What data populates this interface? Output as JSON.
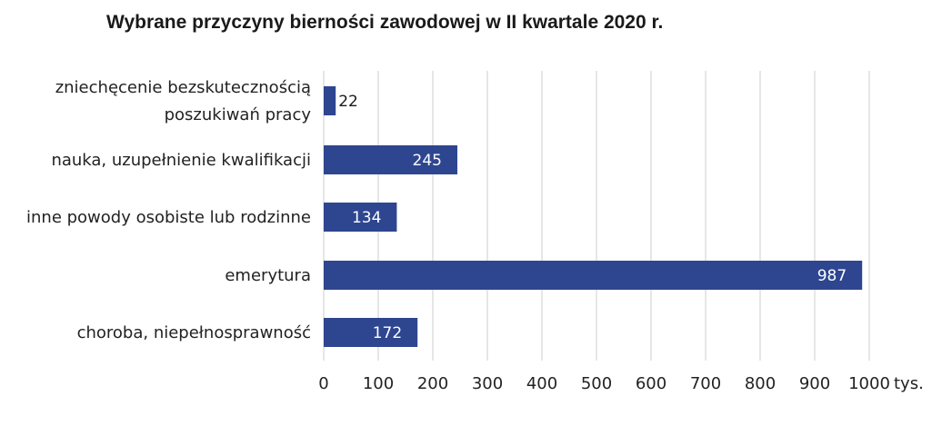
{
  "chart_data": {
    "type": "bar",
    "orientation": "horizontal",
    "title": "Wybrane przyczyny bierności zawodowej w II kwartale 2020 r.",
    "categories": [
      [
        "zniechęcenie bezskutecznością",
        "poszukiwań pracy"
      ],
      [
        "nauka, uzupełnienie kwalifikacji"
      ],
      [
        "inne powody osobiste lub rodzinne"
      ],
      [
        "emerytura"
      ],
      [
        "choroba, niepełnosprawność"
      ]
    ],
    "values": [
      22,
      245,
      134,
      987,
      172
    ],
    "data_labels": [
      "22",
      "245",
      "134",
      "987",
      "172"
    ],
    "xlim": [
      0,
      1000
    ],
    "x_ticks": [
      0,
      100,
      200,
      300,
      400,
      500,
      600,
      700,
      800,
      900,
      1000
    ],
    "x_unit": "tys.",
    "grid": "vertical",
    "bar_color": "#2e4690",
    "label_inside_color": "#ffffff",
    "label_outside_color": "#1a1a1a",
    "grid_color": "#d9d9d9"
  }
}
